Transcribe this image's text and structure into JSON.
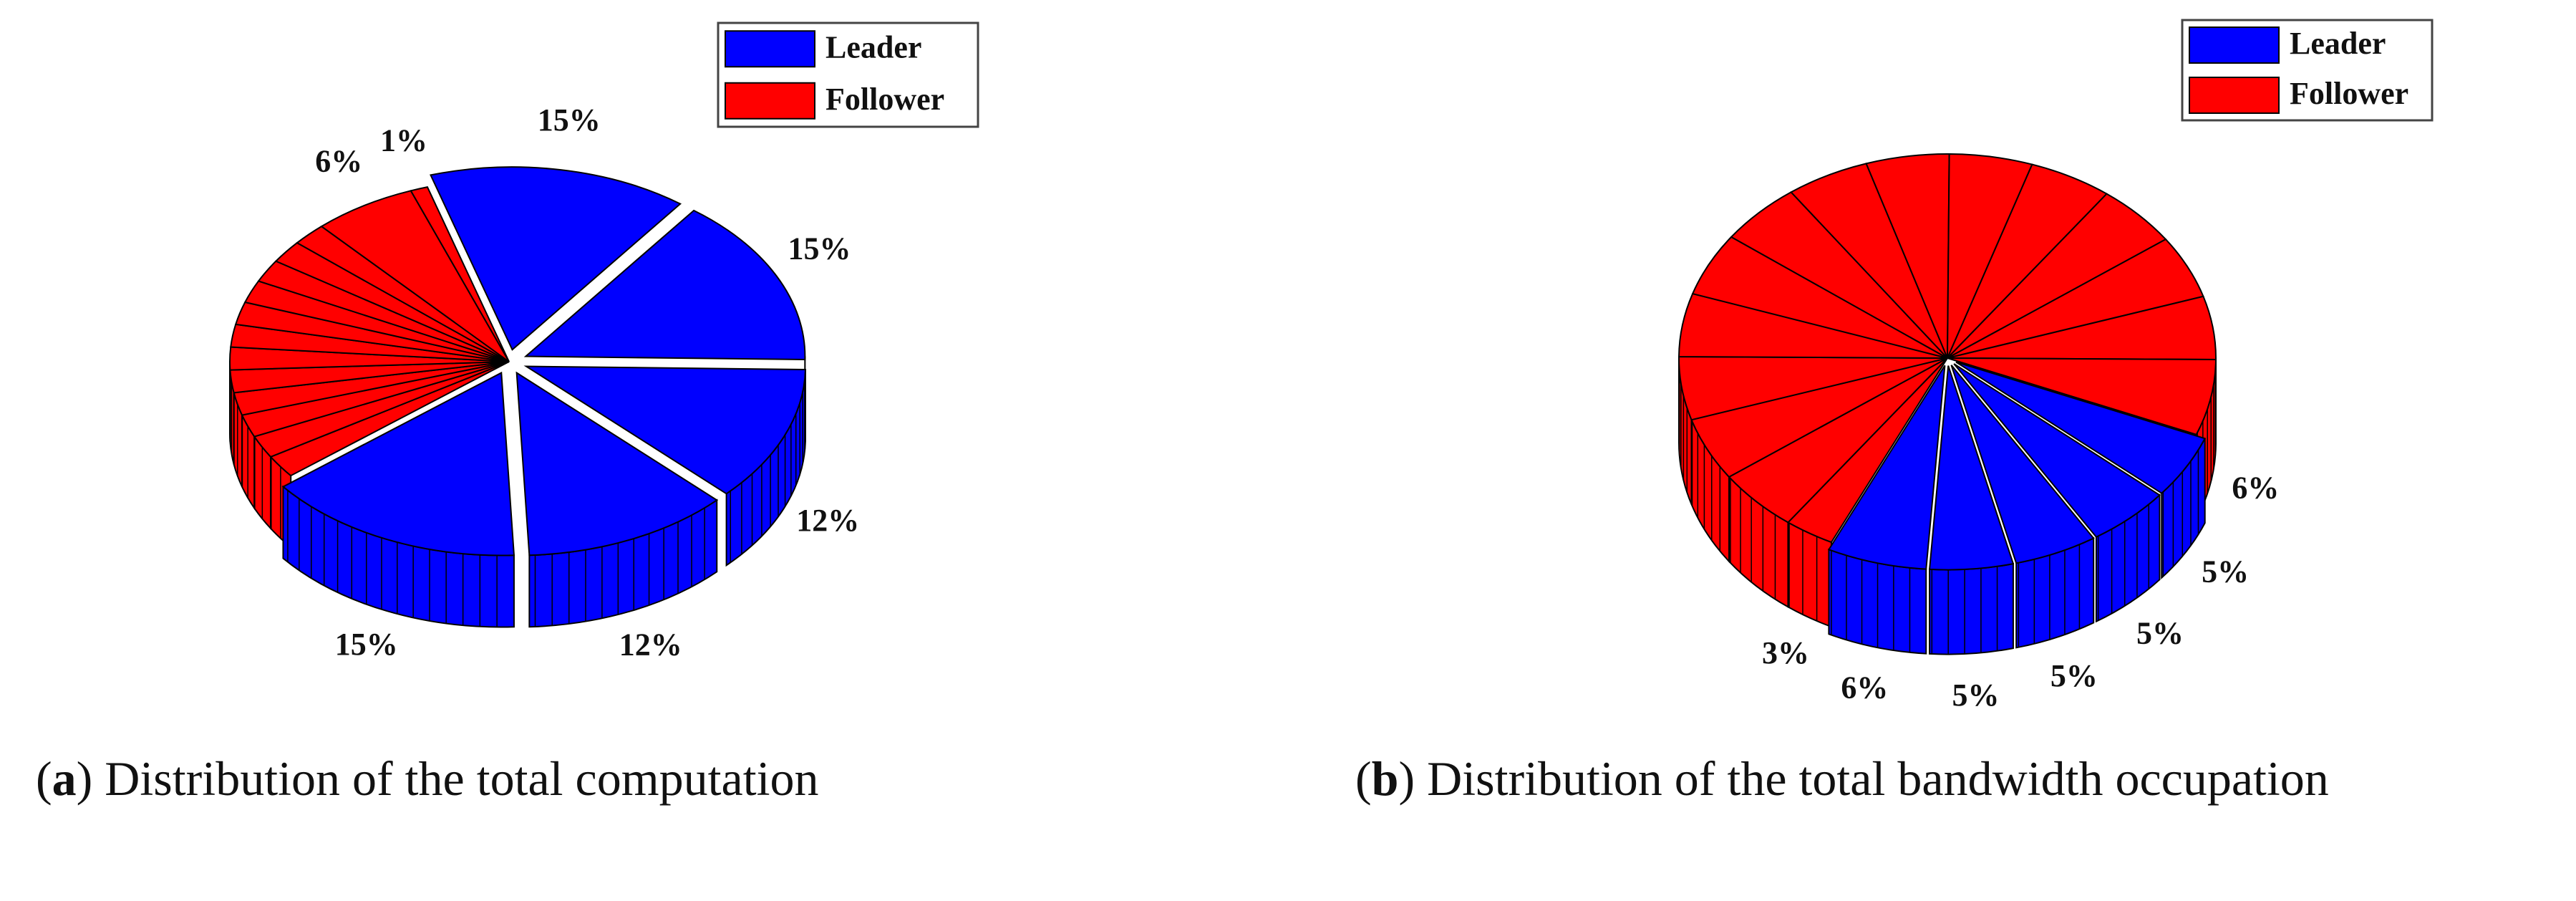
{
  "chart_data": [
    {
      "type": "pie",
      "series": [
        {
          "name": "Leader",
          "color": "#0000ff",
          "explode": true,
          "values": [
            15,
            15,
            12,
            12,
            15
          ],
          "value_labels": [
            "15%",
            "15%",
            "12%",
            "12%",
            "15%"
          ]
        },
        {
          "name": "Follower",
          "color": "#ff0000",
          "values": [
            2,
            2,
            2,
            2,
            2,
            2,
            2,
            2,
            2,
            2,
            2,
            2,
            6,
            1
          ],
          "value_labels": [
            null,
            null,
            null,
            null,
            null,
            null,
            null,
            null,
            null,
            null,
            null,
            null,
            "6%",
            "1%"
          ]
        }
      ],
      "legend": "upper right",
      "caption": [
        "(",
        "a",
        ") Distribution of the total computation"
      ]
    },
    {
      "type": "pie",
      "series": [
        {
          "name": "Leader",
          "color": "#0000ff",
          "explode": true,
          "values": [
            5,
            5,
            5,
            5,
            6
          ],
          "value_labels": [
            "5%",
            "5%",
            "5%",
            "5%",
            "6%"
          ]
        },
        {
          "name": "Follower",
          "color": "#ff0000",
          "values": [
            3,
            5,
            5,
            5,
            5,
            5,
            5,
            5,
            5,
            5,
            5,
            5,
            5,
            5,
            6
          ],
          "value_labels": [
            "3%",
            null,
            null,
            null,
            null,
            null,
            null,
            null,
            null,
            null,
            null,
            null,
            null,
            null,
            "6%"
          ]
        }
      ],
      "legend": "upper right",
      "caption": [
        "(",
        "b",
        ") Distribution of the total bandwidth occupation"
      ]
    }
  ]
}
